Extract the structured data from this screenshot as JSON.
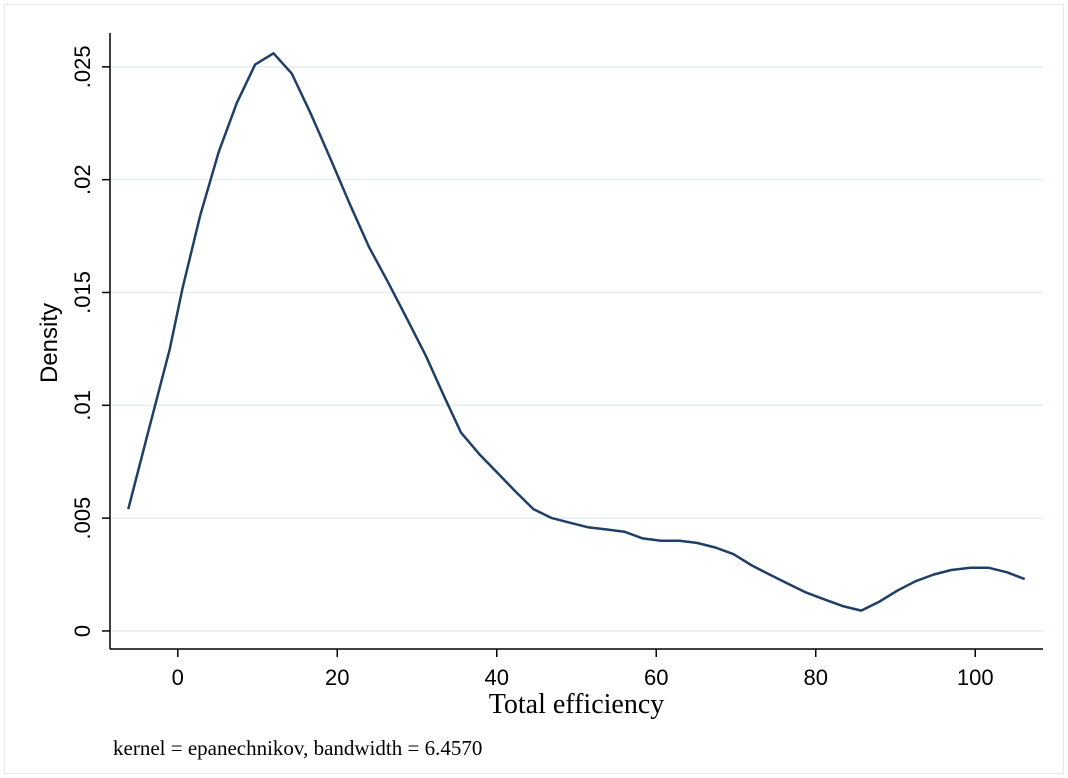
{
  "chart_data": {
    "type": "line",
    "title": "",
    "xlabel": "Total efficiency",
    "ylabel": "Density",
    "note": "kernel = epanechnikov, bandwidth = 6.4570",
    "xlim": [
      -8.5,
      108.5
    ],
    "ylim": [
      -0.0008,
      0.0265
    ],
    "xticks": [
      0,
      20,
      40,
      60,
      80,
      100
    ],
    "xtick_labels": [
      "0",
      "20",
      "40",
      "60",
      "80",
      "100"
    ],
    "yticks": [
      0,
      0.005,
      0.01,
      0.015,
      0.02,
      0.025
    ],
    "ytick_labels": [
      "0",
      ".005",
      ".01",
      ".015",
      ".02",
      ".025"
    ],
    "grid": true,
    "line_color": "#1f3f66",
    "grid_color": "#e3edf2",
    "series": [
      {
        "x": [
          -6.2,
          -3.8,
          -1.0,
          0.6,
          2.8,
          5.1,
          7.4,
          9.7,
          12.0,
          14.3,
          16.7,
          19.3,
          21.6,
          24.0,
          26.3,
          28.8,
          31.1,
          33.4,
          35.5,
          37.9,
          40.1,
          42.3,
          44.6,
          46.9,
          49.1,
          51.4,
          53.7,
          56.0,
          58.3,
          60.6,
          62.9,
          65.1,
          67.4,
          69.7,
          72.0,
          74.2,
          76.5,
          78.8,
          81.1,
          83.4,
          85.7,
          88.0,
          90.3,
          92.5,
          94.8,
          97.0,
          99.4,
          101.7,
          104.0,
          106.2
        ],
        "y": [
          0.0054,
          0.0087,
          0.0125,
          0.0152,
          0.0184,
          0.0212,
          0.0234,
          0.0251,
          0.0256,
          0.0247,
          0.0229,
          0.0208,
          0.0189,
          0.017,
          0.0155,
          0.0138,
          0.0122,
          0.0104,
          0.0088,
          0.0078,
          0.007,
          0.0062,
          0.0054,
          0.005,
          0.0048,
          0.0046,
          0.0045,
          0.0044,
          0.0041,
          0.004,
          0.004,
          0.0039,
          0.0037,
          0.0034,
          0.0029,
          0.0025,
          0.0021,
          0.0017,
          0.0014,
          0.0011,
          0.0009,
          0.0013,
          0.0018,
          0.0022,
          0.0025,
          0.0027,
          0.0028,
          0.0028,
          0.0026,
          0.0023
        ]
      }
    ]
  }
}
